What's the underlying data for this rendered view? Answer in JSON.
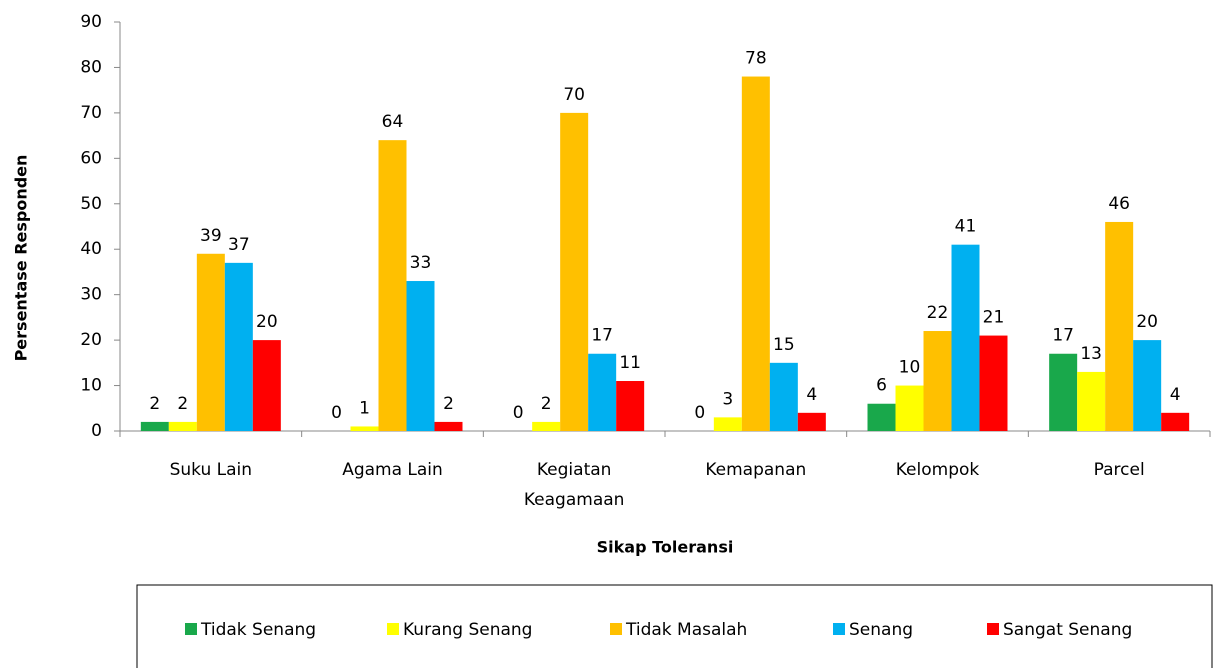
{
  "chart_data": {
    "type": "bar",
    "xlabel": "Sikap Toleransi",
    "ylabel": "Persentase Responden",
    "categories": [
      "Suku Lain",
      "Agama Lain",
      "Kegiatan Keagamaan",
      "Kemapanan",
      "Kelompok",
      "Parcel"
    ],
    "series": [
      {
        "name": "Tidak Senang",
        "color": "#19a84b",
        "values": [
          2,
          0,
          0,
          0,
          6,
          17
        ]
      },
      {
        "name": "Kurang Senang",
        "color": "#ffff00",
        "values": [
          2,
          1,
          2,
          3,
          10,
          13
        ]
      },
      {
        "name": "Tidak Masalah",
        "color": "#ffc000",
        "values": [
          39,
          64,
          70,
          78,
          22,
          46
        ]
      },
      {
        "name": "Senang",
        "color": "#00b0f0",
        "values": [
          37,
          33,
          17,
          15,
          41,
          20
        ]
      },
      {
        "name": "Sangat Senang",
        "color": "#ff0000",
        "values": [
          20,
          2,
          11,
          4,
          21,
          4
        ]
      }
    ],
    "ylim": [
      0,
      90
    ],
    "yticks": [
      0,
      10,
      20,
      30,
      40,
      50,
      60,
      70,
      80,
      90
    ],
    "legend": "bottom"
  }
}
